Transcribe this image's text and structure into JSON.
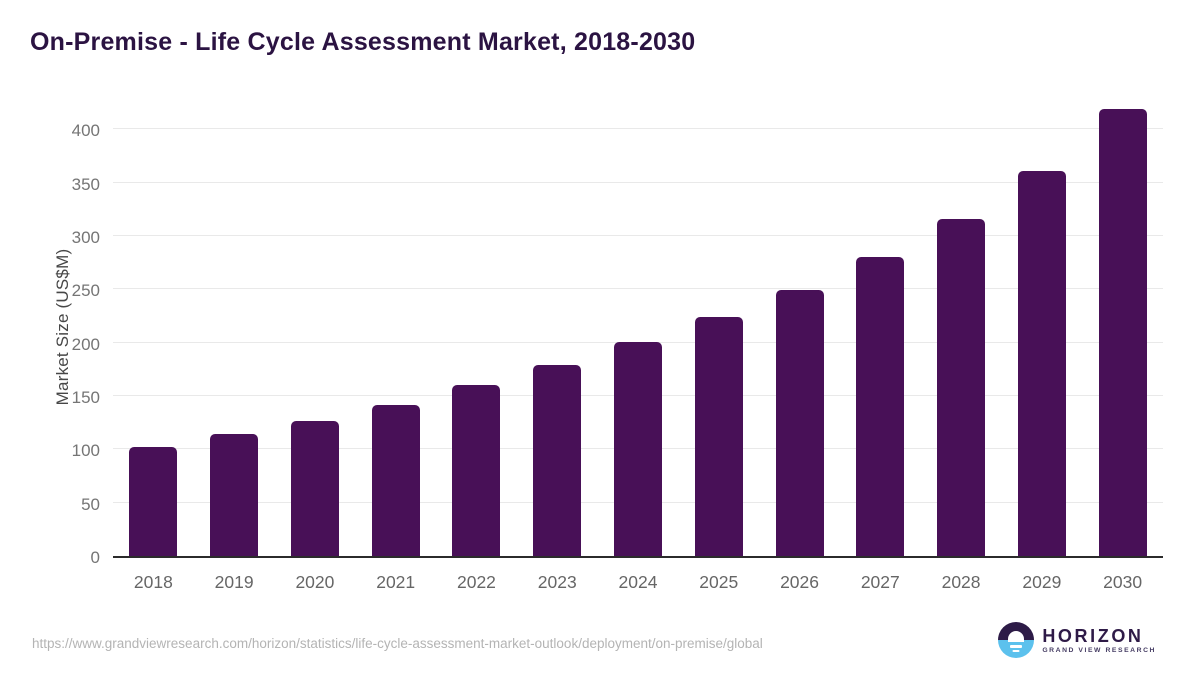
{
  "header": {
    "title": "On-Premise - Life Cycle Assessment Market, 2018-2030"
  },
  "chart_data": {
    "type": "bar",
    "title": "On-Premise - Life Cycle Assessment Market, 2018-2030",
    "categories": [
      "2018",
      "2019",
      "2020",
      "2021",
      "2022",
      "2023",
      "2024",
      "2025",
      "2026",
      "2027",
      "2028",
      "2029",
      "2030"
    ],
    "values": [
      102,
      114,
      127,
      142,
      160,
      179,
      201,
      224,
      249,
      280,
      316,
      361,
      419
    ],
    "xlabel": "",
    "ylabel": "Market Size (US$M)",
    "ylim": [
      0,
      400
    ],
    "ytick_step": 50,
    "grid": true,
    "legend": false,
    "bar_color": "#481057"
  },
  "colors": {
    "bar": "#481057",
    "title": "#2b1342",
    "grid": "#e9e9e9",
    "axis_line": "#2b2b2b",
    "tick_text": "#6e6e6e",
    "footer_text": "#b4b4b4",
    "logo_purple": "#2d1b47",
    "logo_blue": "#5cc1ed"
  },
  "footer": {
    "source_url": "https://www.grandviewresearch.com/horizon/statistics/life-cycle-assessment-market-outlook/deployment/on-premise/global",
    "logo": {
      "name": "HORIZON",
      "subtitle": "GRAND VIEW RESEARCH",
      "icon": "horizon-sun-icon"
    }
  }
}
